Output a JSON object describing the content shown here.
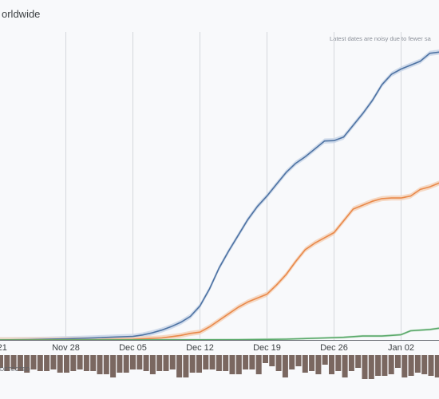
{
  "chart_data": {
    "type": "line",
    "title": "orldwide",
    "note": "Latest dates are noisy due to fewer sa",
    "footer_label": "DETECTED",
    "x_tick_labels": [
      "v 21",
      "Nov 28",
      "Dec 05",
      "Dec 12",
      "Dec 19",
      "Dec 26",
      "Jan 02"
    ],
    "x_tick_days": [
      0,
      7,
      14,
      21,
      28,
      35,
      42
    ],
    "grid": true,
    "series": [
      {
        "color": "#4e73a3",
        "band_color": "#c9d6e8",
        "points": [
          [
            0,
            0.08
          ],
          [
            3,
            0.3
          ],
          [
            5,
            0.55
          ],
          [
            7,
            0.9
          ],
          [
            10,
            1.6
          ],
          [
            12,
            2.2
          ],
          [
            14,
            2.7
          ],
          [
            15,
            3.8
          ],
          [
            16,
            5.4
          ],
          [
            17,
            7.5
          ],
          [
            18,
            10.2
          ],
          [
            19,
            13.5
          ],
          [
            20,
            18
          ],
          [
            21,
            26
          ],
          [
            22,
            39
          ],
          [
            23,
            55
          ],
          [
            24,
            68
          ],
          [
            25,
            80
          ],
          [
            26,
            92
          ],
          [
            27,
            102
          ],
          [
            28,
            110
          ],
          [
            29,
            119
          ],
          [
            30,
            128
          ],
          [
            31,
            135
          ],
          [
            32,
            140
          ],
          [
            33,
            146
          ],
          [
            34,
            152
          ],
          [
            35,
            152.3
          ],
          [
            36,
            155
          ],
          [
            37,
            164
          ],
          [
            38,
            173
          ],
          [
            39,
            183
          ],
          [
            40,
            195
          ],
          [
            41,
            203
          ],
          [
            42,
            207
          ],
          [
            43,
            210
          ],
          [
            44,
            213
          ],
          [
            45,
            219
          ],
          [
            46,
            220
          ],
          [
            47,
            224
          ]
        ]
      },
      {
        "color": "#e9894a",
        "band_color": "#f5d2b8",
        "points": [
          [
            0,
            0
          ],
          [
            10,
            0.2
          ],
          [
            14,
            0.5
          ],
          [
            17,
            1.5
          ],
          [
            18,
            2.5
          ],
          [
            19,
            3.5
          ],
          [
            20,
            5
          ],
          [
            21,
            6
          ],
          [
            22,
            10
          ],
          [
            23,
            15
          ],
          [
            24,
            20
          ],
          [
            25,
            25
          ],
          [
            26,
            29
          ],
          [
            27,
            32
          ],
          [
            28,
            35
          ],
          [
            29,
            42
          ],
          [
            30,
            50
          ],
          [
            31,
            60
          ],
          [
            32,
            69
          ],
          [
            33,
            74
          ],
          [
            34,
            78
          ],
          [
            35,
            82
          ],
          [
            36,
            91
          ],
          [
            37,
            100
          ],
          [
            38,
            103
          ],
          [
            39,
            106
          ],
          [
            40,
            108
          ],
          [
            41,
            108.5
          ],
          [
            42,
            108.5
          ],
          [
            43,
            110
          ],
          [
            44,
            115
          ],
          [
            45,
            117
          ],
          [
            46,
            120
          ],
          [
            47,
            122
          ]
        ]
      },
      {
        "color": "#5aa96a",
        "band_color": "#cfe6d3",
        "points": [
          [
            0,
            0
          ],
          [
            25,
            0.2
          ],
          [
            30,
            0.6
          ],
          [
            34,
            1.5
          ],
          [
            36,
            2
          ],
          [
            38,
            3
          ],
          [
            40,
            3
          ],
          [
            41,
            3.5
          ],
          [
            42,
            4
          ],
          [
            43,
            7
          ],
          [
            44,
            7.5
          ],
          [
            45,
            8
          ],
          [
            46,
            9
          ],
          [
            47,
            12
          ]
        ]
      }
    ],
    "bottom_bars": {
      "color": "#7a6760",
      "values": [
        -8,
        -10,
        -9,
        -10,
        -11,
        -9,
        -10,
        -10,
        -9,
        -11,
        -11,
        -10,
        -9,
        -10,
        -10,
        -12,
        -12,
        -14,
        -11,
        -11,
        -9,
        -9,
        -10,
        -12,
        -10,
        -10,
        -9,
        -14,
        -14,
        -11,
        -11,
        -9,
        -9,
        -10,
        -10,
        -12,
        -12,
        -9,
        -9,
        -12,
        -5,
        -7,
        -10,
        -14,
        -9,
        -7,
        -11,
        -10,
        -12,
        -6,
        -12,
        -10,
        -14,
        -10,
        -8,
        -15,
        -15,
        -13,
        -13,
        -12,
        -8,
        -14,
        -13,
        -11,
        -12,
        -13,
        -14,
        -12
      ]
    }
  }
}
